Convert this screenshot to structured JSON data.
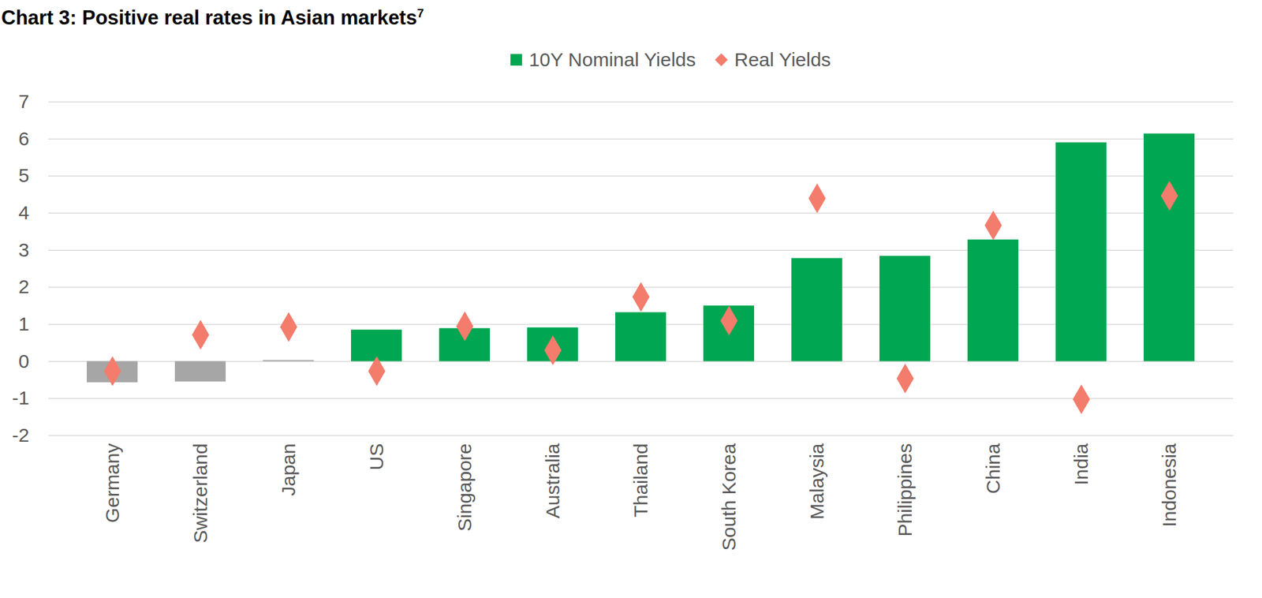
{
  "chart_data": {
    "type": "bar",
    "title": "Chart 3: Positive real rates in Asian markets",
    "title_footnote": "7",
    "categories": [
      "Germany",
      "Switzerland",
      "Japan",
      "US",
      "Singapore",
      "Australia",
      "Thailand",
      "South Korea",
      "Malaysia",
      "Philippines",
      "China",
      "India",
      "Indonesia"
    ],
    "series": [
      {
        "name": "10Y Nominal Yields",
        "type": "bar",
        "color": "#00a651",
        "colors": [
          "#a6a6a6",
          "#a6a6a6",
          "#a6a6a6",
          "#00a651",
          "#00a651",
          "#00a651",
          "#00a651",
          "#00a651",
          "#00a651",
          "#00a651",
          "#00a651",
          "#00a651",
          "#00a651"
        ],
        "values": [
          -0.57,
          -0.55,
          0.03,
          0.85,
          0.89,
          0.91,
          1.32,
          1.5,
          2.78,
          2.84,
          3.28,
          5.9,
          6.14
        ]
      },
      {
        "name": "Real Yields",
        "type": "scatter",
        "marker": "diamond",
        "color": "#f47c6c",
        "values": [
          -0.26,
          0.72,
          0.93,
          -0.26,
          0.95,
          0.3,
          1.74,
          1.1,
          4.4,
          -0.46,
          3.67,
          -1.02,
          4.47
        ]
      }
    ],
    "ylim": [
      -2,
      7
    ],
    "yticks": [
      -2,
      -1,
      0,
      1,
      2,
      3,
      4,
      5,
      6,
      7
    ],
    "grid": true,
    "legend": "top"
  }
}
